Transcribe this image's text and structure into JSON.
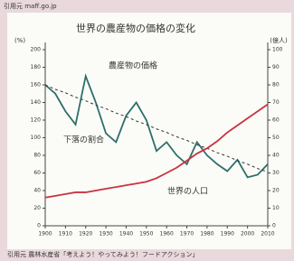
{
  "source_top": "引用元 maff.go.jp",
  "source_bottom": "引用元 農林水産省「考えよう！やってみよう！フードアクション」",
  "chart_data": {
    "type": "line",
    "title": "世界の農産物の価格の変化",
    "ylabel": "(%)",
    "y2label": "(億人)",
    "x": [
      1900,
      1905,
      1910,
      1915,
      1920,
      1925,
      1930,
      1935,
      1940,
      1945,
      1950,
      1955,
      1960,
      1965,
      1970,
      1975,
      1980,
      1985,
      1990,
      1995,
      2000,
      2005,
      2010
    ],
    "xlim": [
      1900,
      2010
    ],
    "xticks": [
      1900,
      1910,
      1920,
      1930,
      1940,
      1950,
      1960,
      1970,
      1980,
      1990,
      2000,
      2010
    ],
    "ylim": [
      0,
      200
    ],
    "yticks": [
      0,
      20,
      40,
      60,
      80,
      100,
      120,
      140,
      160,
      180,
      200
    ],
    "y2lim": [
      0,
      100
    ],
    "y2ticks": [
      0,
      10,
      20,
      30,
      40,
      50,
      60,
      70,
      80,
      90,
      100
    ],
    "series": [
      {
        "name": "農産物の価格",
        "color": "#2e6f6a",
        "dash": false,
        "values": [
          160,
          150,
          130,
          115,
          170,
          140,
          105,
          95,
          125,
          140,
          120,
          85,
          95,
          80,
          70,
          95,
          80,
          70,
          62,
          75,
          55,
          58,
          70
        ]
      },
      {
        "name": "下落の割合",
        "color": "#333333",
        "dash": true,
        "values": [
          160,
          155,
          151,
          146,
          142,
          137,
          133,
          128,
          124,
          119,
          115,
          110,
          106,
          101,
          97,
          92,
          88,
          83,
          79,
          74,
          70,
          65,
          61
        ]
      },
      {
        "name": "世界の人口",
        "color": "#c8333f",
        "dash": false,
        "axis": "y2",
        "values": [
          16,
          17,
          18,
          19,
          19,
          20,
          21,
          22,
          23,
          24,
          25,
          27,
          30,
          33,
          37,
          41,
          44,
          48,
          53,
          57,
          61,
          65,
          69
        ]
      }
    ]
  }
}
